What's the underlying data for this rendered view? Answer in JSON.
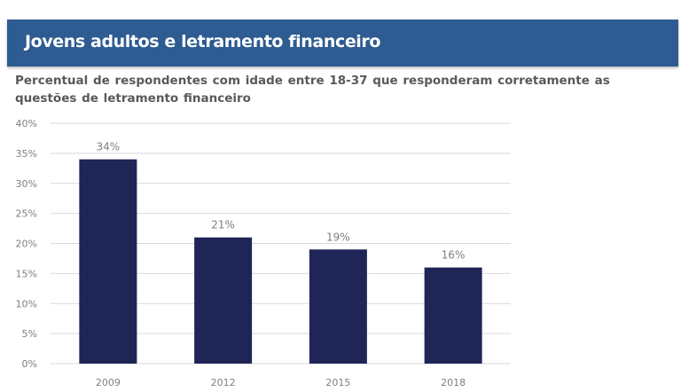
{
  "header": {
    "title": "Jovens adultos e letramento financeiro",
    "subtitle": "Percentual de respondentes com idade entre 18-37 que responderam corretamente as questões de letramento financeiro"
  },
  "colors": {
    "header_bg": "#2e5b91",
    "bar": "#1f2557",
    "grid": "#d9d9d9",
    "text": "#7f7f7f"
  },
  "chart_data": {
    "type": "bar",
    "categories": [
      "2009",
      "2012",
      "2015",
      "2018"
    ],
    "values": [
      34,
      21,
      19,
      16
    ],
    "data_labels": [
      "34%",
      "21%",
      "19%",
      "16%"
    ],
    "ylim": [
      0,
      40
    ],
    "yticks": [
      0,
      5,
      10,
      15,
      20,
      25,
      30,
      35,
      40
    ],
    "ytick_labels": [
      "0%",
      "5%",
      "10%",
      "15%",
      "20%",
      "25%",
      "30%",
      "35%",
      "40%"
    ],
    "grid": true,
    "legend": "none"
  }
}
